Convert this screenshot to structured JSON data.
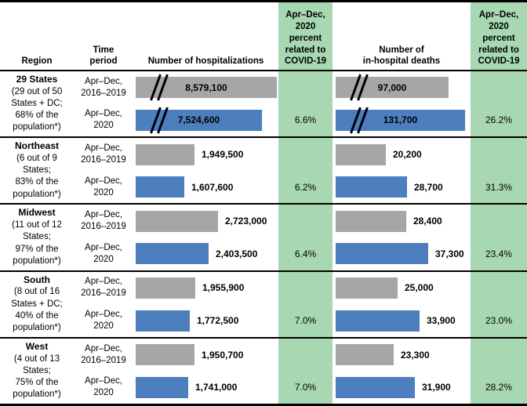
{
  "colors": {
    "green_column_bg": "#a8d8b2",
    "bar_2016_2019": "#a6a6a6",
    "bar_2020": "#4d7ebe",
    "border": "#000000",
    "text": "#000000"
  },
  "header": {
    "region": "Region",
    "time_period": "Time\nperiod",
    "hospitalizations": "Number of hospitalizations",
    "covid_pct": "Apr–Dec,\n2020\npercent\nrelated to\nCOVID-19",
    "deaths": "Number of\nin-hospital deaths"
  },
  "chart_data": {
    "type": "bar",
    "orientation": "horizontal",
    "series_periods": [
      "Apr–Dec, 2016–2019",
      "Apr–Dec, 2020"
    ],
    "measures": [
      "Number of hospitalizations",
      "Number of in-hospital deaths",
      "Apr–Dec, 2020 percent related to COVID-19"
    ],
    "regions": [
      {
        "name": "29 States",
        "note": "(29 out of 50\nStates + DC;\n68% of the\npopulation*)",
        "rows": [
          {
            "period": "Apr–Dec,\n2016–2019",
            "hospitalizations": 8579100,
            "hospitalizations_label": "8,579,100",
            "deaths": 97000,
            "deaths_label": "97,000",
            "broken_axis": true
          },
          {
            "period": "Apr–Dec,\n2020",
            "hospitalizations": 7524600,
            "hospitalizations_label": "7,524,600",
            "deaths": 131700,
            "deaths_label": "131,700",
            "hosp_covid_pct": "6.6%",
            "deaths_covid_pct": "26.2%",
            "broken_axis": true
          }
        ]
      },
      {
        "name": "Northeast",
        "note": "(6 out of 9\nStates;\n83% of the\npopulation*)",
        "rows": [
          {
            "period": "Apr–Dec,\n2016–2019",
            "hospitalizations": 1949500,
            "hospitalizations_label": "1,949,500",
            "deaths": 20200,
            "deaths_label": "20,200",
            "broken_axis": false
          },
          {
            "period": "Apr–Dec,\n2020",
            "hospitalizations": 1607600,
            "hospitalizations_label": "1,607,600",
            "deaths": 28700,
            "deaths_label": "28,700",
            "hosp_covid_pct": "6.2%",
            "deaths_covid_pct": "31.3%",
            "broken_axis": false
          }
        ]
      },
      {
        "name": "Midwest",
        "note": "(11 out of 12\nStates;\n97% of the\npopulation*)",
        "rows": [
          {
            "period": "Apr–Dec,\n2016–2019",
            "hospitalizations": 2723000,
            "hospitalizations_label": "2,723,000",
            "deaths": 28400,
            "deaths_label": "28,400",
            "broken_axis": false
          },
          {
            "period": "Apr–Dec,\n2020",
            "hospitalizations": 2403500,
            "hospitalizations_label": "2,403,500",
            "deaths": 37300,
            "deaths_label": "37,300",
            "hosp_covid_pct": "6.4%",
            "deaths_covid_pct": "23.4%",
            "broken_axis": false
          }
        ]
      },
      {
        "name": "South",
        "note": "(8 out of 16\nStates + DC;\n40% of the\npopulation*)",
        "rows": [
          {
            "period": "Apr–Dec,\n2016–2019",
            "hospitalizations": 1955900,
            "hospitalizations_label": "1,955,900",
            "deaths": 25000,
            "deaths_label": "25,000",
            "broken_axis": false
          },
          {
            "period": "Apr–Dec,\n2020",
            "hospitalizations": 1772500,
            "hospitalizations_label": "1,772,500",
            "deaths": 33900,
            "deaths_label": "33,900",
            "hosp_covid_pct": "7.0%",
            "deaths_covid_pct": "23.0%",
            "broken_axis": false
          }
        ]
      },
      {
        "name": "West",
        "note": "(4 out of 13\nStates;\n75% of the\npopulation*)",
        "rows": [
          {
            "period": "Apr–Dec,\n2016–2019",
            "hospitalizations": 1950700,
            "hospitalizations_label": "1,950,700",
            "deaths": 23300,
            "deaths_label": "23,300",
            "broken_axis": false
          },
          {
            "period": "Apr–Dec,\n2020",
            "hospitalizations": 1741000,
            "hospitalizations_label": "1,741,000",
            "deaths": 31900,
            "deaths_label": "31,900",
            "hosp_covid_pct": "7.0%",
            "deaths_covid_pct": "28.2%",
            "broken_axis": false
          }
        ]
      }
    ]
  }
}
